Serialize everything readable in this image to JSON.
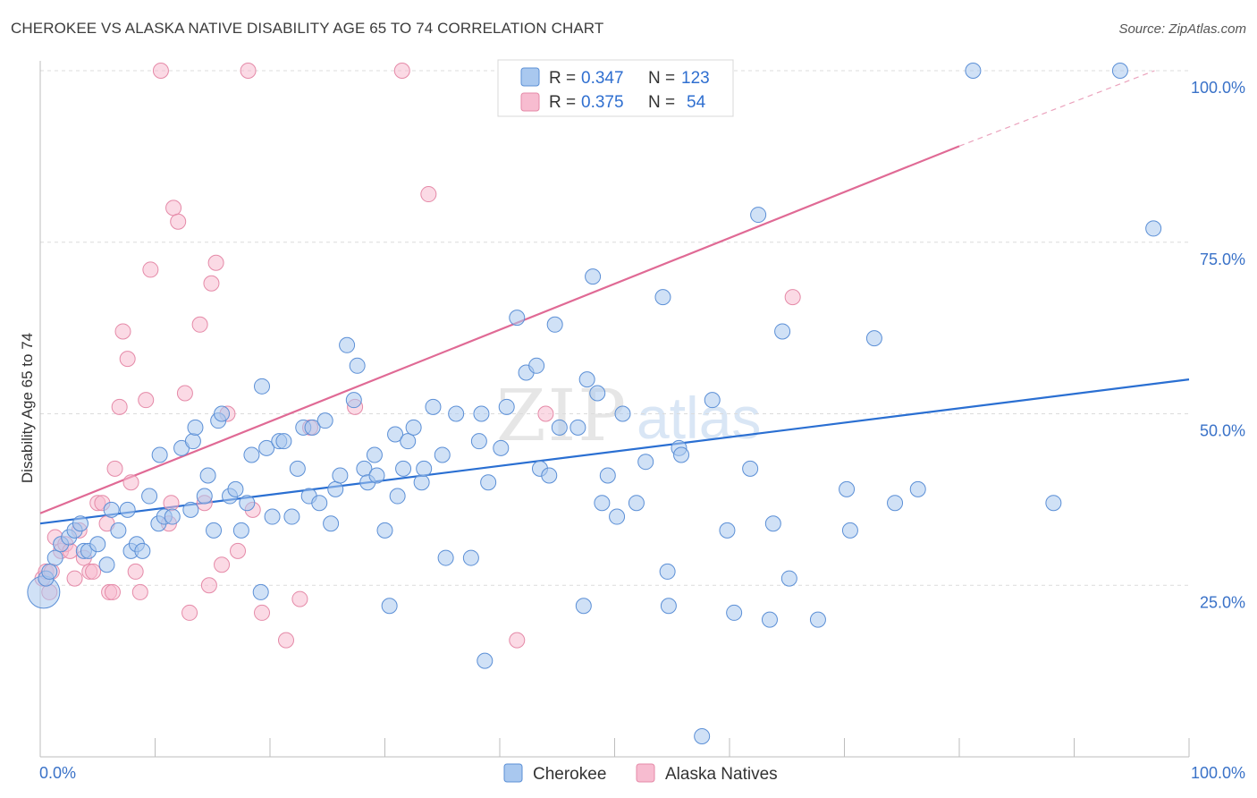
{
  "header": {
    "title": "CHEROKEE VS ALASKA NATIVE DISABILITY AGE 65 TO 74 CORRELATION CHART",
    "source": "Source: ZipAtlas.com"
  },
  "watermark": {
    "zip": "ZIP",
    "atlas": "atlas"
  },
  "legend_top": {
    "rows": [
      {
        "r_label": "R =",
        "r_value": "0.347",
        "n_label": "N =",
        "n_value": "123"
      },
      {
        "r_label": "R =",
        "r_value": "0.375",
        "n_label": "N =",
        "n_value": "54"
      }
    ]
  },
  "chart_data": {
    "type": "scatter",
    "title": "CHEROKEE VS ALASKA NATIVE DISABILITY AGE 65 TO 74 CORRELATION CHART",
    "xlabel": "",
    "ylabel": "Disability Age 65 to 74",
    "xlim": [
      0,
      100
    ],
    "ylim": [
      0,
      100
    ],
    "x_tick_labels": [
      "0.0%",
      "100.0%"
    ],
    "y_ticks": [
      25,
      50,
      75,
      100
    ],
    "y_tick_labels": [
      "25.0%",
      "50.0%",
      "75.0%",
      "100.0%"
    ],
    "grid": true,
    "legend_position": "top-center",
    "colors": {
      "cherokee_fill": "#a9c8ef",
      "cherokee_stroke": "#5b8fd6",
      "cherokee_line": "#2a6fd2",
      "alaska_fill": "#f7bcd0",
      "alaska_stroke": "#e58aa8",
      "alaska_line": "#e06a95"
    },
    "series": [
      {
        "name": "Cherokee",
        "r": 0.347,
        "n": 123,
        "trend": {
          "x0": 0,
          "y0": 34.0,
          "x1": 100,
          "y1": 55.0
        },
        "points": [
          [
            0.3,
            24
          ],
          [
            0.5,
            26
          ],
          [
            0.8,
            27
          ],
          [
            1.3,
            29
          ],
          [
            1.8,
            31
          ],
          [
            2.5,
            32
          ],
          [
            3.0,
            33
          ],
          [
            3.5,
            34
          ],
          [
            3.8,
            30
          ],
          [
            4.2,
            30
          ],
          [
            5.0,
            31
          ],
          [
            5.8,
            28
          ],
          [
            6.2,
            36
          ],
          [
            6.8,
            33
          ],
          [
            7.6,
            36
          ],
          [
            7.9,
            30
          ],
          [
            8.4,
            31
          ],
          [
            8.9,
            30
          ],
          [
            9.5,
            38
          ],
          [
            10.3,
            34
          ],
          [
            10.4,
            44
          ],
          [
            10.8,
            35
          ],
          [
            11.5,
            35
          ],
          [
            12.3,
            45
          ],
          [
            13.1,
            36
          ],
          [
            13.3,
            46
          ],
          [
            13.5,
            48
          ],
          [
            14.3,
            38
          ],
          [
            14.6,
            41
          ],
          [
            15.1,
            33
          ],
          [
            15.5,
            49
          ],
          [
            15.8,
            50
          ],
          [
            16.5,
            38
          ],
          [
            17.0,
            39
          ],
          [
            17.5,
            33
          ],
          [
            18.0,
            37
          ],
          [
            18.4,
            44
          ],
          [
            19.2,
            24
          ],
          [
            19.3,
            54
          ],
          [
            19.7,
            45
          ],
          [
            20.2,
            35
          ],
          [
            20.8,
            46
          ],
          [
            21.2,
            46
          ],
          [
            21.9,
            35
          ],
          [
            22.4,
            42
          ],
          [
            22.9,
            48
          ],
          [
            23.4,
            38
          ],
          [
            23.7,
            48
          ],
          [
            24.3,
            37
          ],
          [
            24.8,
            49
          ],
          [
            25.3,
            34
          ],
          [
            25.7,
            39
          ],
          [
            26.1,
            41
          ],
          [
            26.7,
            60
          ],
          [
            27.3,
            52
          ],
          [
            27.6,
            57
          ],
          [
            28.2,
            42
          ],
          [
            28.5,
            40
          ],
          [
            29.1,
            44
          ],
          [
            29.3,
            41
          ],
          [
            30.0,
            33
          ],
          [
            30.4,
            22
          ],
          [
            30.9,
            47
          ],
          [
            31.1,
            38
          ],
          [
            31.6,
            42
          ],
          [
            32.0,
            46
          ],
          [
            32.5,
            48
          ],
          [
            33.2,
            40
          ],
          [
            33.4,
            42
          ],
          [
            34.2,
            51
          ],
          [
            35.0,
            44
          ],
          [
            35.3,
            29
          ],
          [
            36.2,
            50
          ],
          [
            37.5,
            29
          ],
          [
            38.2,
            46
          ],
          [
            38.4,
            50
          ],
          [
            38.7,
            14
          ],
          [
            39.0,
            40
          ],
          [
            40.1,
            45
          ],
          [
            40.6,
            51
          ],
          [
            41.5,
            64
          ],
          [
            42.3,
            56
          ],
          [
            43.2,
            57
          ],
          [
            43.5,
            42
          ],
          [
            44.3,
            41
          ],
          [
            44.8,
            63
          ],
          [
            45.2,
            48
          ],
          [
            46.8,
            48
          ],
          [
            47.3,
            22
          ],
          [
            47.6,
            55
          ],
          [
            48.1,
            70
          ],
          [
            48.5,
            53
          ],
          [
            48.9,
            37
          ],
          [
            49.4,
            41
          ],
          [
            50.2,
            35
          ],
          [
            50.7,
            50
          ],
          [
            51.9,
            37
          ],
          [
            52.7,
            43
          ],
          [
            54.2,
            67
          ],
          [
            54.6,
            27
          ],
          [
            54.7,
            22
          ],
          [
            55.6,
            45
          ],
          [
            55.8,
            44
          ],
          [
            57.6,
            3
          ],
          [
            58.5,
            52
          ],
          [
            59.8,
            33
          ],
          [
            60.4,
            21
          ],
          [
            61.8,
            42
          ],
          [
            62.5,
            79
          ],
          [
            63.5,
            20
          ],
          [
            63.8,
            34
          ],
          [
            64.6,
            62
          ],
          [
            65.2,
            26
          ],
          [
            67.7,
            20
          ],
          [
            70.2,
            39
          ],
          [
            70.5,
            33
          ],
          [
            72.6,
            61
          ],
          [
            74.4,
            37
          ],
          [
            76.4,
            39
          ],
          [
            81.2,
            100
          ],
          [
            94.0,
            100
          ],
          [
            96.9,
            77
          ],
          [
            88.2,
            37
          ]
        ]
      },
      {
        "name": "Alaska Natives",
        "r": 0.375,
        "n": 54,
        "trend": {
          "x0": 0,
          "y0": 35.5,
          "x1": 80,
          "y1": 89.0,
          "dashed_to": {
            "x": 97,
            "y": 100.0
          }
        },
        "points": [
          [
            0.2,
            26
          ],
          [
            0.5,
            27
          ],
          [
            1.0,
            27
          ],
          [
            1.3,
            32
          ],
          [
            1.8,
            30
          ],
          [
            2.2,
            31
          ],
          [
            2.6,
            30
          ],
          [
            3.0,
            26
          ],
          [
            3.4,
            33
          ],
          [
            3.8,
            29
          ],
          [
            4.3,
            27
          ],
          [
            4.6,
            27
          ],
          [
            5.0,
            37
          ],
          [
            5.4,
            37
          ],
          [
            5.8,
            34
          ],
          [
            6.0,
            24
          ],
          [
            6.3,
            24
          ],
          [
            6.5,
            42
          ],
          [
            6.9,
            51
          ],
          [
            7.2,
            62
          ],
          [
            7.6,
            58
          ],
          [
            7.9,
            40
          ],
          [
            8.3,
            27
          ],
          [
            8.7,
            24
          ],
          [
            9.2,
            52
          ],
          [
            9.6,
            71
          ],
          [
            10.5,
            100
          ],
          [
            11.2,
            34
          ],
          [
            11.4,
            37
          ],
          [
            11.6,
            80
          ],
          [
            12.0,
            78
          ],
          [
            12.6,
            53
          ],
          [
            13.0,
            21
          ],
          [
            13.9,
            63
          ],
          [
            14.3,
            37
          ],
          [
            14.7,
            25
          ],
          [
            14.9,
            69
          ],
          [
            15.3,
            72
          ],
          [
            15.8,
            28
          ],
          [
            16.3,
            50
          ],
          [
            17.2,
            30
          ],
          [
            18.1,
            100
          ],
          [
            18.5,
            36
          ],
          [
            19.3,
            21
          ],
          [
            21.4,
            17
          ],
          [
            22.6,
            23
          ],
          [
            23.5,
            48
          ],
          [
            27.4,
            51
          ],
          [
            31.5,
            100
          ],
          [
            33.8,
            82
          ],
          [
            41.5,
            17
          ],
          [
            44.0,
            50
          ],
          [
            65.5,
            67
          ],
          [
            0.8,
            24
          ]
        ]
      }
    ]
  },
  "bottom_legend": {
    "items": [
      "Cherokee",
      "Alaska Natives"
    ]
  }
}
